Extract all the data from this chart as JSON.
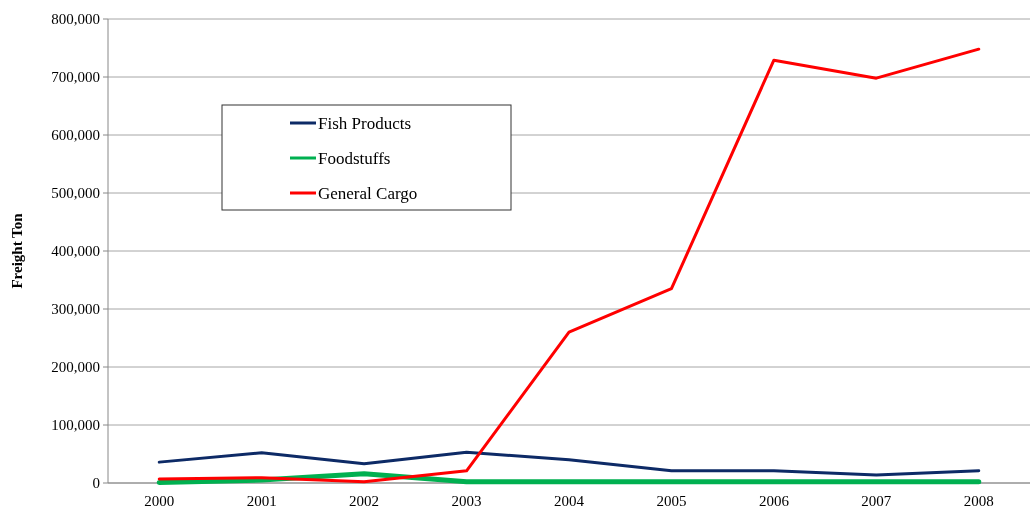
{
  "chart_data": {
    "type": "line",
    "ylabel": "Freight Ton",
    "categories": [
      "2000",
      "2001",
      "2002",
      "2003",
      "2004",
      "2005",
      "2006",
      "2007",
      "2008"
    ],
    "series": [
      {
        "name": "Fish Products",
        "color": "#0d2a66",
        "values": [
          36000,
          52000,
          33000,
          53000,
          40000,
          21000,
          21000,
          14000,
          21000
        ]
      },
      {
        "name": "Foodstuffs",
        "color": "#00b050",
        "values": [
          1000,
          5000,
          16000,
          2000,
          2000,
          2000,
          2000,
          2000,
          2000
        ]
      },
      {
        "name": "General Cargo",
        "color": "#ff0000",
        "values": [
          7000,
          9000,
          2000,
          21000,
          260000,
          335000,
          729000,
          698000,
          748000
        ]
      }
    ],
    "ylim": [
      0,
      800000
    ],
    "yticks": [
      {
        "value": 0,
        "label": "0"
      },
      {
        "value": 100000,
        "label": "100,000"
      },
      {
        "value": 200000,
        "label": "200,000"
      },
      {
        "value": 300000,
        "label": "300,000"
      },
      {
        "value": 400000,
        "label": "400,000"
      },
      {
        "value": 500000,
        "label": "500,000"
      },
      {
        "value": 600000,
        "label": "600,000"
      },
      {
        "value": 700000,
        "label": "700,000"
      },
      {
        "value": 800000,
        "label": "800,000"
      }
    ],
    "grid": "y",
    "legend": "top left",
    "marker": "none",
    "line_style": "solid"
  }
}
